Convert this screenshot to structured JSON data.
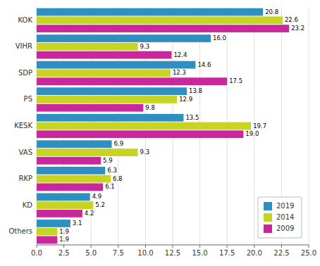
{
  "chart_data": {
    "type": "bar",
    "orientation": "horizontal",
    "categories": [
      "KOK",
      "VIHR",
      "SDP",
      "PS",
      "KESK",
      "VAS",
      "RKP",
      "KD",
      "Others"
    ],
    "series": [
      {
        "name": "2019",
        "color": "#2e8fc0",
        "values": [
          20.8,
          16.0,
          14.6,
          13.8,
          13.5,
          6.9,
          6.3,
          4.9,
          3.1
        ],
        "value_labels": [
          "20.8",
          "16.0",
          "14.6",
          "13.8",
          "13.5",
          "6.9",
          "6.3",
          "4.9",
          "3.1"
        ]
      },
      {
        "name": "2014",
        "color": "#c8d424",
        "values": [
          22.6,
          9.3,
          12.3,
          12.9,
          19.7,
          9.3,
          6.8,
          5.2,
          1.9
        ],
        "value_labels": [
          "22.6",
          "9.3",
          "12.3",
          "12.9",
          "19.7",
          "9.3",
          "6.8",
          "5.2",
          "1.9"
        ]
      },
      {
        "name": "2009",
        "color": "#c8289c",
        "values": [
          23.2,
          12.4,
          17.5,
          9.8,
          19.0,
          5.9,
          6.1,
          4.2,
          1.9
        ],
        "value_labels": [
          "23.2",
          "12.4",
          "17.5",
          "9.8",
          "19.0",
          "5.9",
          "6.1",
          "4.2",
          "1.9"
        ]
      }
    ],
    "xlim": [
      0,
      25.0
    ],
    "xticks": [
      {
        "value": 0,
        "label": "0.0"
      },
      2.5,
      {
        "value": 5,
        "label": "5.0"
      },
      7.5,
      {
        "value": 10,
        "label": "10.0"
      },
      12.5,
      {
        "value": 15,
        "label": "15.0"
      },
      17.5,
      {
        "value": 20,
        "label": "20.0"
      },
      22.5,
      {
        "value": 25,
        "label": "25.0"
      }
    ],
    "grid": true,
    "legend": "lower right",
    "data_labels": true
  }
}
